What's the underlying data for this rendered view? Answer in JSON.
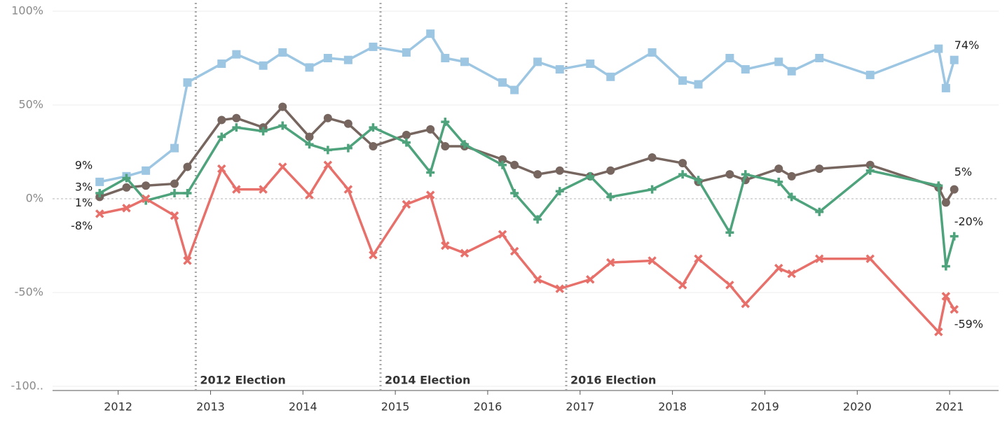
{
  "chart_data": {
    "type": "line",
    "x": [
      2011.8,
      2012.09,
      2012.3,
      2012.61,
      2012.75,
      2013.12,
      2013.28,
      2013.57,
      2013.78,
      2014.07,
      2014.27,
      2014.49,
      2014.76,
      2015.12,
      2015.38,
      2015.54,
      2015.75,
      2016.16,
      2016.29,
      2016.54,
      2016.78,
      2017.11,
      2017.33,
      2017.78,
      2018.11,
      2018.28,
      2018.62,
      2018.79,
      2019.15,
      2019.29,
      2019.59,
      2020.14,
      2020.88,
      2020.96,
      2021.05
    ],
    "series": [
      {
        "color": "#9dc6e3",
        "marker": "square",
        "values": [
          9,
          12,
          15,
          27,
          62,
          72,
          77,
          71,
          78,
          70,
          75,
          74,
          81,
          78,
          88,
          75,
          73,
          62,
          58,
          73,
          69,
          72,
          65,
          78,
          63,
          61,
          75,
          69,
          73,
          68,
          75,
          66,
          80,
          59,
          74
        ],
        "value_labels": [
          "9%",
          null,
          null,
          null,
          null,
          null,
          null,
          null,
          null,
          null,
          null,
          null,
          null,
          null,
          null,
          null,
          null,
          null,
          null,
          null,
          null,
          null,
          null,
          null,
          null,
          null,
          null,
          null,
          null,
          null,
          null,
          null,
          null,
          null,
          "74%"
        ]
      },
      {
        "color": "#76665f",
        "marker": "circle",
        "values": [
          1,
          6,
          7,
          8,
          17,
          42,
          43,
          38,
          49,
          33,
          43,
          40,
          28,
          34,
          37,
          28,
          28,
          21,
          18,
          13,
          15,
          12,
          15,
          22,
          19,
          9,
          13,
          10,
          16,
          12,
          16,
          18,
          6,
          -2,
          5
        ],
        "value_labels": [
          "1%",
          null,
          null,
          null,
          null,
          null,
          null,
          null,
          null,
          null,
          null,
          null,
          null,
          null,
          null,
          null,
          null,
          null,
          null,
          null,
          null,
          null,
          null,
          null,
          null,
          null,
          null,
          null,
          null,
          null,
          null,
          null,
          null,
          null,
          "5%"
        ]
      },
      {
        "color": "#4ea37c",
        "marker": "plus",
        "values": [
          3,
          11,
          -1,
          3,
          3,
          33,
          38,
          36,
          39,
          29,
          26,
          27,
          38,
          30,
          14,
          41,
          29,
          18,
          3,
          -11,
          4,
          12,
          1,
          5,
          13,
          10,
          -18,
          13,
          9,
          1,
          -7,
          15,
          7,
          -36,
          -20
        ],
        "value_labels": [
          "3%",
          null,
          null,
          null,
          null,
          null,
          null,
          null,
          null,
          null,
          null,
          null,
          null,
          null,
          null,
          null,
          null,
          null,
          null,
          null,
          null,
          null,
          null,
          null,
          null,
          null,
          null,
          null,
          null,
          null,
          null,
          null,
          null,
          null,
          "-20%"
        ]
      },
      {
        "color": "#e8706b",
        "marker": "cross",
        "values": [
          -8,
          -5,
          0,
          -9,
          -33,
          16,
          5,
          5,
          17,
          2,
          18,
          5,
          -30,
          -3,
          2,
          -25,
          -29,
          -19,
          -28,
          -43,
          -48,
          -43,
          -34,
          -33,
          -46,
          -32,
          -46,
          -56,
          -37,
          -40,
          -32,
          -32,
          -71,
          -52,
          -59
        ],
        "value_labels": [
          "-8%",
          null,
          null,
          null,
          null,
          null,
          null,
          null,
          null,
          null,
          null,
          null,
          null,
          null,
          null,
          null,
          null,
          null,
          null,
          null,
          null,
          null,
          null,
          null,
          null,
          null,
          null,
          null,
          null,
          null,
          null,
          null,
          null,
          null,
          "-59%"
        ]
      }
    ],
    "annotations": [
      {
        "x": 2012.84,
        "text": "2012 Election"
      },
      {
        "x": 2014.84,
        "text": "2014 Election"
      },
      {
        "x": 2016.85,
        "text": "2016 Election"
      }
    ],
    "xlim": [
      2011.29,
      2021.53
    ],
    "xticks": [
      2012,
      2013,
      2014,
      2015,
      2016,
      2017,
      2018,
      2019,
      2020,
      2021
    ],
    "ylim": [
      -100,
      100
    ],
    "yticks": [
      {
        "value": 100,
        "label": "100%"
      },
      {
        "value": 50,
        "label": "50%"
      },
      {
        "value": 0,
        "label": "0%"
      },
      {
        "value": -50,
        "label": "-50%"
      },
      {
        "value": -100,
        "label": "-100.."
      }
    ],
    "grid": true
  }
}
